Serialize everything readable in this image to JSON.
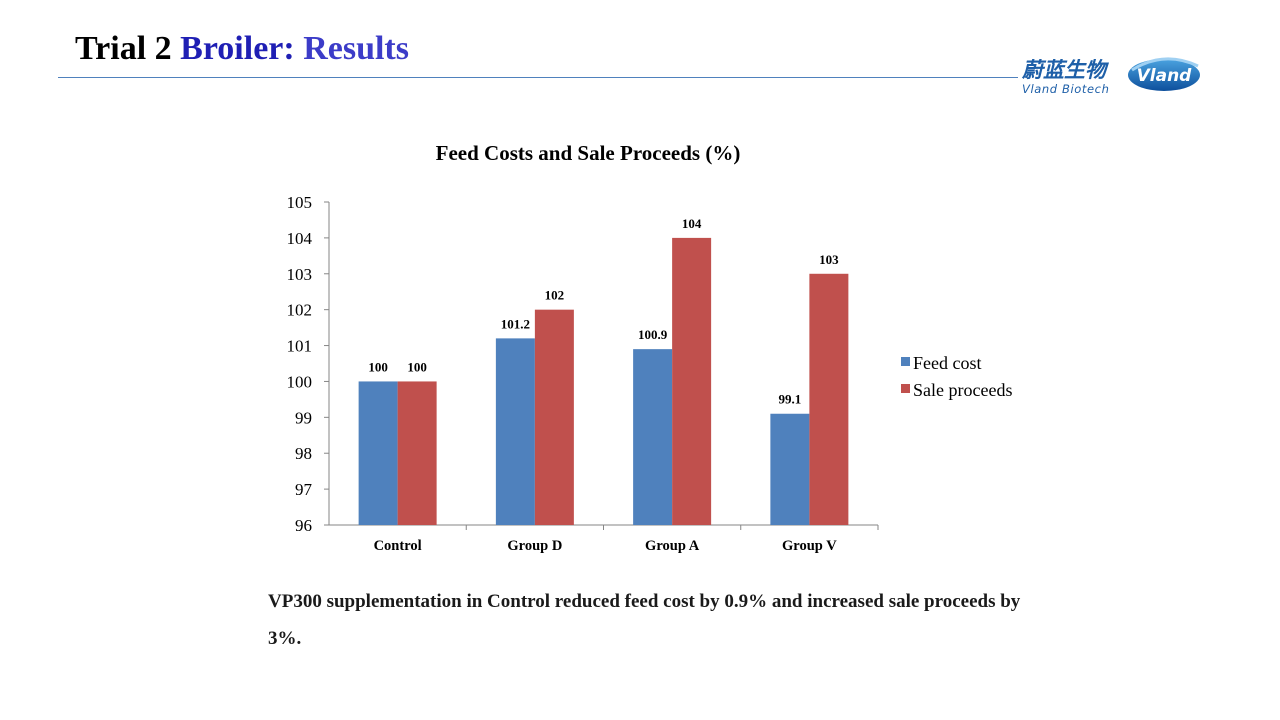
{
  "slide": {
    "title_part1": "Trial 2 ",
    "title_part2": "Broiler:",
    "title_part3": " Results",
    "caption": "VP300 supplementation in Control reduced feed cost by 0.9% and increased sale proceeds by 3%."
  },
  "logo": {
    "chinese_text": "蔚蓝生物",
    "english_text": "Vland  Biotech",
    "badge_text": "Vland",
    "brand_color": "#1e5fa8"
  },
  "chart_data": {
    "type": "bar",
    "title": "Feed Costs and Sale Proceeds (%)",
    "categories": [
      "Control",
      "Group D",
      "Group A",
      "Group V"
    ],
    "series": [
      {
        "name": "Feed cost",
        "values": [
          100,
          101.2,
          100.9,
          99.1
        ],
        "color": "#4f81bd"
      },
      {
        "name": "Sale proceeds",
        "values": [
          100,
          102,
          104,
          103
        ],
        "color": "#c0504d"
      }
    ],
    "ylim": [
      96,
      105
    ],
    "yticks": [
      96,
      97,
      98,
      99,
      100,
      101,
      102,
      103,
      104,
      105
    ],
    "data_labels": true,
    "grid": false,
    "legend_position": "right"
  }
}
